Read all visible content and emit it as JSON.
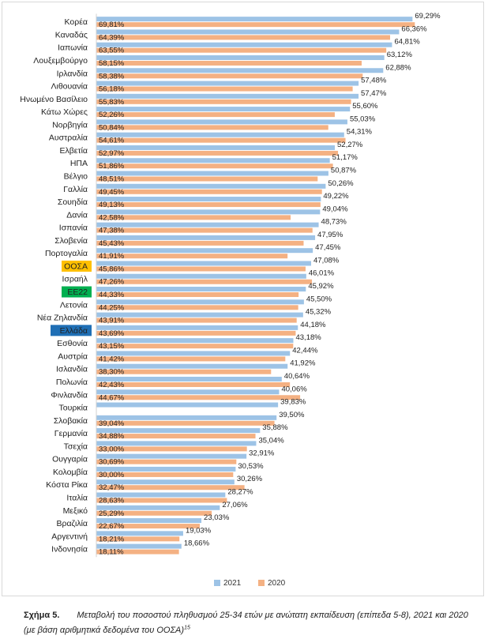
{
  "chart_data": {
    "type": "bar",
    "orientation": "horizontal",
    "categories": [
      "Κορέα",
      "Καναδάς",
      "Ιαπωνία",
      "Λουξεμβούργο",
      "Ιρλανδία",
      "Λιθουανία",
      "Ηνωμένο Βασίλειο",
      "Κάτω Χώρες",
      "Νορβηγία",
      "Αυστραλία",
      "Ελβετία",
      "ΗΠΑ",
      "Βέλγιο",
      "Γαλλία",
      "Σουηδία",
      "Δανία",
      "Ισπανία",
      "Σλοβενία",
      "Πορτογαλία",
      "ΟΟΣΑ",
      "Ισραήλ",
      "ΕΕ22",
      "Λετονία",
      "Νέα Ζηλανδία",
      "Ελλάδα",
      "Εσθονία",
      "Αυστρία",
      "Ισλανδία",
      "Πολωνία",
      "Φινλανδία",
      "Τουρκία",
      "Σλοβακία",
      "Γερμανία",
      "Τσεχία",
      "Ουγγαρία",
      "Κολομβία",
      "Κόστα Ρίκα",
      "Ιταλία",
      "Μεξικό",
      "Βραζιλία",
      "Αργεντινή",
      "Ινδονησία"
    ],
    "series": [
      {
        "name": "2021",
        "color": "#9dc3e6",
        "values": [
          69.29,
          66.36,
          64.81,
          63.12,
          62.88,
          57.48,
          57.47,
          55.6,
          55.03,
          54.31,
          52.27,
          51.17,
          50.87,
          50.26,
          49.22,
          49.04,
          48.73,
          47.95,
          47.45,
          47.08,
          46.01,
          45.92,
          45.5,
          45.32,
          44.18,
          43.18,
          42.44,
          41.92,
          40.64,
          40.06,
          39.83,
          39.5,
          35.88,
          35.04,
          32.91,
          30.53,
          30.26,
          28.27,
          27.06,
          23.03,
          19.03,
          18.66
        ],
        "labels": [
          "69,29%",
          "66,36%",
          "64,81%",
          "63,12%",
          "62,88%",
          "57,48%",
          "57,47%",
          "55,60%",
          "55,03%",
          "54,31%",
          "52,27%",
          "51,17%",
          "50,87%",
          "50,26%",
          "49,22%",
          "49,04%",
          "48,73%",
          "47,95%",
          "47,45%",
          "47,08%",
          "46,01%",
          "45,92%",
          "45,50%",
          "45,32%",
          "44,18%",
          "43,18%",
          "42,44%",
          "41,92%",
          "40,64%",
          "40,06%",
          "39,83%",
          "39,50%",
          "35,88%",
          "35,04%",
          "32,91%",
          "30,53%",
          "30,26%",
          "28,27%",
          "27,06%",
          "23,03%",
          "19,03%",
          "18,66%"
        ]
      },
      {
        "name": "2020",
        "color": "#f4b183",
        "values": [
          69.81,
          64.39,
          63.55,
          58.15,
          58.38,
          56.18,
          55.83,
          52.26,
          50.84,
          54.61,
          52.97,
          51.86,
          48.51,
          49.45,
          49.13,
          42.58,
          47.38,
          45.43,
          41.91,
          45.86,
          47.26,
          44.33,
          44.25,
          43.91,
          43.69,
          43.15,
          41.42,
          38.3,
          42.43,
          44.67,
          null,
          39.04,
          34.88,
          33.0,
          30.69,
          30.0,
          32.47,
          28.63,
          25.29,
          22.67,
          18.21,
          18.11
        ],
        "labels": [
          "69,81%",
          "64,39%",
          "63,55%",
          "58,15%",
          "58,38%",
          "56,18%",
          "55,83%",
          "52,26%",
          "50,84%",
          "54,61%",
          "52,97%",
          "51,86%",
          "48,51%",
          "49,45%",
          "49,13%",
          "42,58%",
          "47,38%",
          "45,43%",
          "41,91%",
          "45,86%",
          "47,26%",
          "44,33%",
          "44,25%",
          "43,91%",
          "43,69%",
          "43,15%",
          "41,42%",
          "38,30%",
          "42,43%",
          "44,67%",
          null,
          "39,04%",
          "34,88%",
          "33,00%",
          "30,69%",
          "30,00%",
          "32,47%",
          "28,63%",
          "25,29%",
          "22,67%",
          "18,21%",
          "18,11%"
        ]
      }
    ],
    "highlights": [
      {
        "category": "ΟΟΣΑ",
        "color": "#ffc000",
        "text_color": "#222222"
      },
      {
        "category": "ΕΕ22",
        "color": "#00b050",
        "text_color": "#ffffff"
      },
      {
        "category": "Ελλάδα",
        "color": "#1f6fb5",
        "text_color": "#ffffff"
      }
    ],
    "xlim": [
      0,
      72
    ],
    "grid": false,
    "legend": "bottom-center",
    "title": "",
    "xlabel": "",
    "ylabel": ""
  },
  "caption": {
    "figure_number": "Σχήμα 5.",
    "text": "Μεταβολή του ποσοστού πληθυσμού 25-34 ετών με ανώτατη εκπαίδευση (επίπεδα 5-8), 2021 και 2020 (με βάση αριθμητικά δεδομένα του ΟΟΣΑ)",
    "footnote": "15"
  }
}
